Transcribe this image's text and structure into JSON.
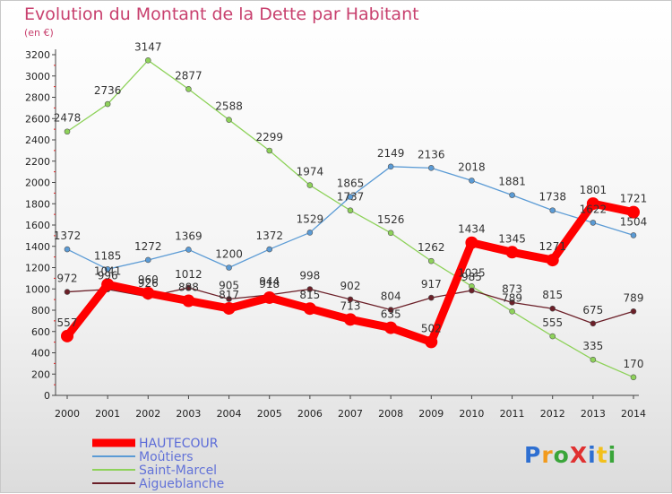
{
  "title": "Evolution du Montant de la Dette par Habitant",
  "subtitle": "(en €)",
  "logo": "ProXiti",
  "colors": {
    "title": "#c8406e",
    "hautecour": "#ff0000",
    "moutiers": "#5b9bd5",
    "saint_marcel": "#8ed25a",
    "aigueblanche": "#6b1f28"
  },
  "chart_data": {
    "type": "line",
    "title": "Evolution du Montant de la Dette par Habitant",
    "subtitle": "(en €)",
    "x": [
      "2000",
      "2001",
      "2002",
      "2003",
      "2004",
      "2005",
      "2006",
      "2007",
      "2008",
      "2009",
      "2010",
      "2011",
      "2012",
      "2013",
      "2014"
    ],
    "ylim": [
      0,
      3200
    ],
    "yticks": [
      0,
      200,
      400,
      600,
      800,
      1000,
      1200,
      1400,
      1600,
      1800,
      2000,
      2200,
      2400,
      2600,
      2800,
      3000,
      3200
    ],
    "grid": false,
    "legend": "bottom-left",
    "series": [
      {
        "name": "HAUTECOUR",
        "values": [
          557,
          1041,
          960,
          888,
          817,
          918,
          815,
          713,
          635,
          502,
          1434,
          1345,
          1271,
          1801,
          1721
        ]
      },
      {
        "name": "Moûtiers",
        "values": [
          1372,
          1185,
          1272,
          1369,
          1200,
          1372,
          1529,
          1865,
          2149,
          2136,
          2018,
          1881,
          1738,
          1622,
          1504
        ]
      },
      {
        "name": "Saint-Marcel",
        "values": [
          2478,
          2736,
          3147,
          2877,
          2588,
          2299,
          1974,
          1737,
          1526,
          1262,
          1025,
          789,
          555,
          335,
          170
        ]
      },
      {
        "name": "Aigueblanche",
        "values": [
          972,
          996,
          926,
          1012,
          905,
          944,
          998,
          902,
          804,
          917,
          985,
          873,
          815,
          675,
          789
        ]
      }
    ]
  }
}
